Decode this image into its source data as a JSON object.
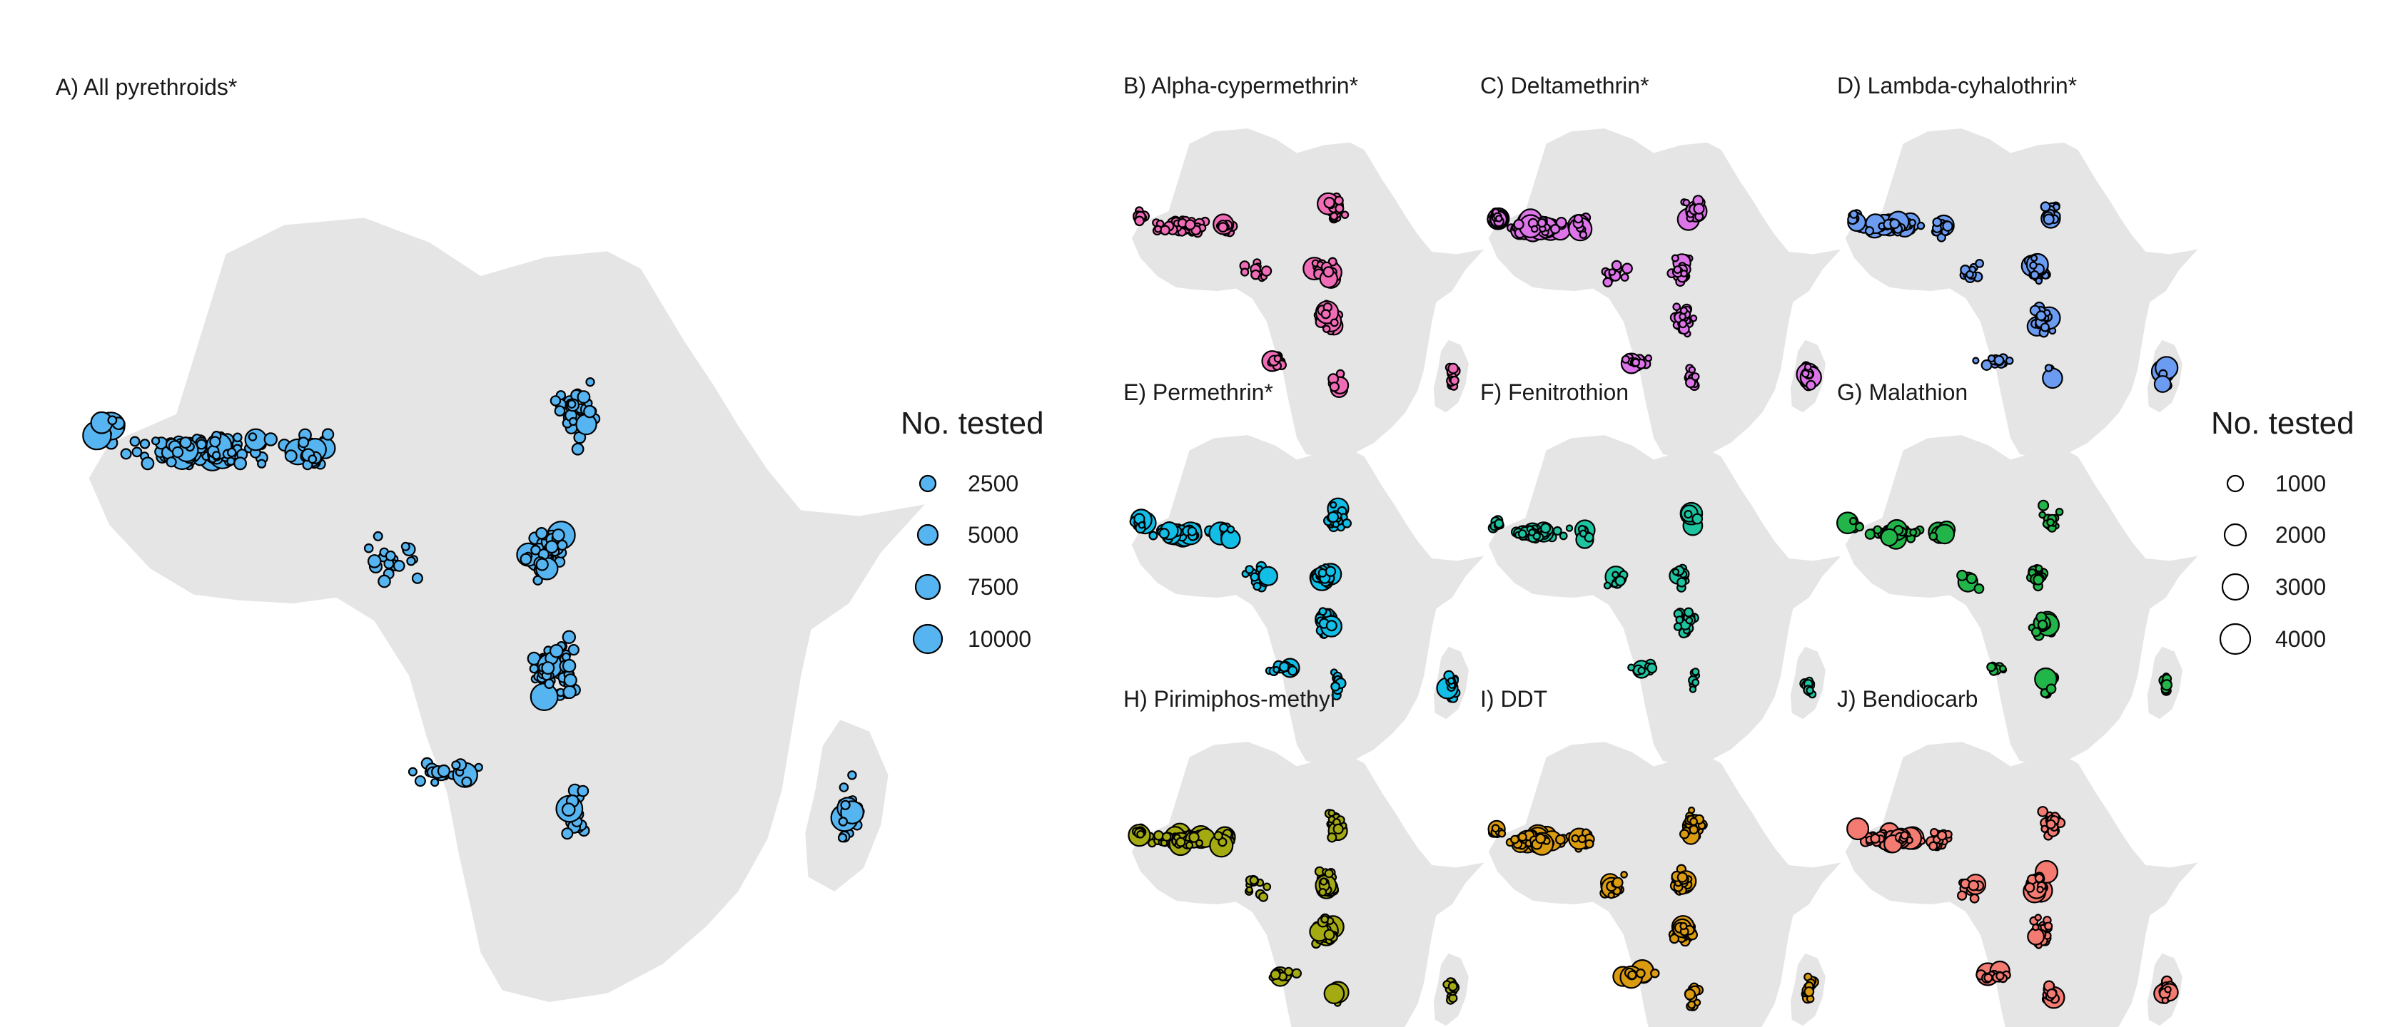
{
  "panels": [
    {
      "id": "A",
      "title": "A) All pyrethroids*",
      "color": "#56b4f0"
    },
    {
      "id": "B",
      "title": "B) Alpha-cypermethrin*",
      "color": "#f06cb7"
    },
    {
      "id": "C",
      "title": "C) Deltamethrin*",
      "color": "#de74e9"
    },
    {
      "id": "D",
      "title": "D) Lambda-cyhalothrin*",
      "color": "#6b9cf2"
    },
    {
      "id": "E",
      "title": "E) Permethrin*",
      "color": "#12bde6"
    },
    {
      "id": "F",
      "title": "F) Fenitrothion",
      "color": "#1ec4a0"
    },
    {
      "id": "G",
      "title": "G) Malathion",
      "color": "#22b54a"
    },
    {
      "id": "H",
      "title": "H) Pirimiphos-methyl",
      "color": "#a3aa12"
    },
    {
      "id": "I",
      "title": "I) DDT",
      "color": "#db9b10"
    },
    {
      "id": "J",
      "title": "J) Bendiocarb",
      "color": "#f47b72"
    }
  ],
  "legend_pyrethroids": {
    "title": "No. tested",
    "color": "#56b4f0",
    "entries": [
      {
        "label": "2500",
        "value": 2500
      },
      {
        "label": "5000",
        "value": 5000
      },
      {
        "label": "7500",
        "value": 7500
      },
      {
        "label": "10000",
        "value": 10000
      }
    ]
  },
  "legend_other": {
    "title": "No. tested",
    "color": "#ffffff",
    "entries": [
      {
        "label": "1000",
        "value": 1000
      },
      {
        "label": "2000",
        "value": 2000
      },
      {
        "label": "3000",
        "value": 3000
      },
      {
        "label": "4000",
        "value": 4000
      }
    ]
  }
}
